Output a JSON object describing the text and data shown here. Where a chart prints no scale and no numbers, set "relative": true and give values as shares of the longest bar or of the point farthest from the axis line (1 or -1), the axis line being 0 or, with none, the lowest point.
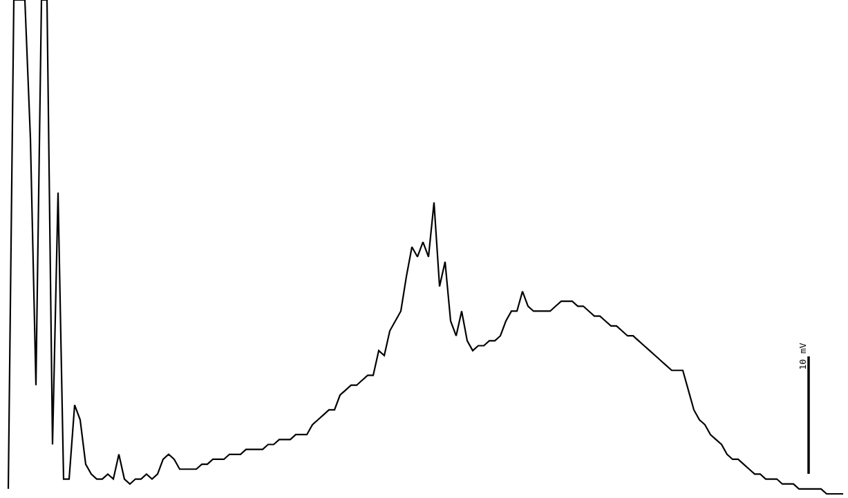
{
  "chart_data": {
    "type": "line",
    "relative": true,
    "marker": "none",
    "categories": [
      null,
      null,
      null,
      null,
      null,
      null,
      null,
      null,
      null,
      null,
      null,
      null,
      null,
      null,
      null,
      null,
      null,
      null,
      null,
      null,
      null,
      null,
      null,
      null,
      null,
      null,
      null,
      null,
      null,
      null,
      null,
      null,
      null,
      null,
      null,
      null,
      null,
      null,
      null,
      null,
      null,
      null,
      null,
      null,
      null,
      null,
      null,
      null,
      null,
      null,
      null,
      null,
      null,
      null,
      null,
      null,
      null,
      null,
      null,
      null,
      null,
      null,
      null,
      null,
      null,
      null,
      null,
      null,
      null,
      null,
      null,
      null,
      null,
      null,
      null,
      null,
      null,
      null,
      null,
      null,
      null,
      null,
      null,
      null,
      null,
      null,
      null,
      null,
      null,
      null,
      null,
      null,
      null,
      null,
      null,
      null,
      null,
      null,
      null,
      null,
      null,
      null,
      null,
      null,
      null,
      null,
      null,
      null,
      null,
      null,
      null,
      null,
      null,
      null,
      null,
      null,
      null,
      null,
      null,
      null,
      null,
      null,
      null,
      null,
      null,
      null,
      null,
      null,
      null,
      null,
      null,
      null,
      null,
      null,
      null,
      null,
      null,
      null,
      null,
      null,
      null,
      null,
      null,
      null,
      null,
      null,
      null,
      null,
      null,
      null,
      null,
      null
    ],
    "series": [
      {
        "color": "#000000",
        "values": [
          0.01,
          1.0,
          1.0,
          1.0,
          0.72,
          0.22,
          1.0,
          1.0,
          0.1,
          0.61,
          0.03,
          0.03,
          0.18,
          0.15,
          0.06,
          0.04,
          0.03,
          0.03,
          0.04,
          0.03,
          0.08,
          0.03,
          0.02,
          0.03,
          0.03,
          0.04,
          0.03,
          0.04,
          0.07,
          0.08,
          0.07,
          0.05,
          0.05,
          0.05,
          0.05,
          0.06,
          0.06,
          0.07,
          0.07,
          0.07,
          0.08,
          0.08,
          0.08,
          0.09,
          0.09,
          0.09,
          0.09,
          0.1,
          0.1,
          0.11,
          0.11,
          0.11,
          0.12,
          0.12,
          0.12,
          0.14,
          0.15,
          0.16,
          0.17,
          0.17,
          0.2,
          0.21,
          0.22,
          0.22,
          0.23,
          0.24,
          0.24,
          0.29,
          0.28,
          0.33,
          0.35,
          0.37,
          0.44,
          0.5,
          0.48,
          0.51,
          0.48,
          0.59,
          0.42,
          0.47,
          0.35,
          0.32,
          0.37,
          0.31,
          0.29,
          0.3,
          0.3,
          0.31,
          0.31,
          0.32,
          0.35,
          0.37,
          0.37,
          0.41,
          0.38,
          0.37,
          0.37,
          0.37,
          0.37,
          0.38,
          0.39,
          0.39,
          0.39,
          0.38,
          0.38,
          0.37,
          0.36,
          0.36,
          0.35,
          0.34,
          0.34,
          0.33,
          0.32,
          0.32,
          0.31,
          0.3,
          0.29,
          0.28,
          0.27,
          0.26,
          0.25,
          0.25,
          0.25,
          0.21,
          0.17,
          0.15,
          0.14,
          0.12,
          0.11,
          0.1,
          0.08,
          0.07,
          0.07,
          0.06,
          0.05,
          0.04,
          0.04,
          0.03,
          0.03,
          0.03,
          0.02,
          0.02,
          0.02,
          0.01,
          0.01,
          0.01,
          0.01,
          0.01,
          0.0,
          0.0,
          0.0,
          0.0
        ]
      }
    ],
    "line_style": "solid",
    "annotations": [
      "10 mV"
    ]
  }
}
